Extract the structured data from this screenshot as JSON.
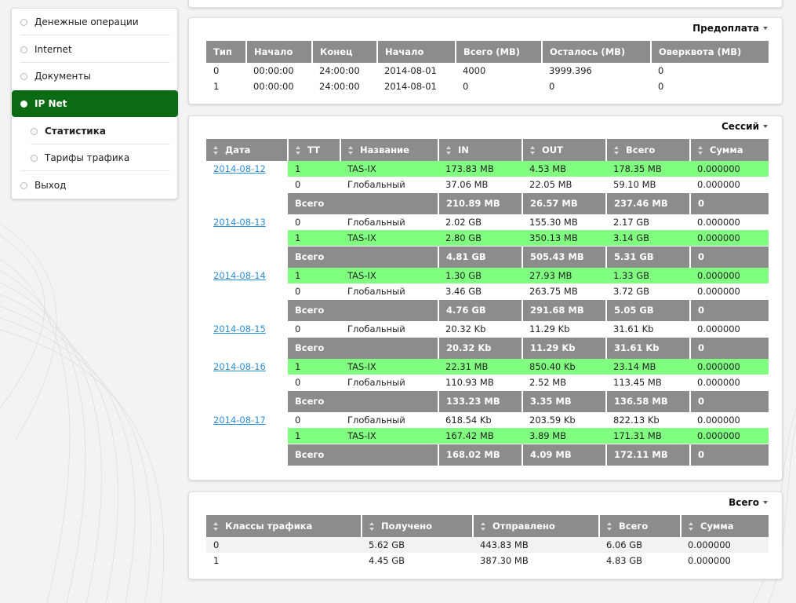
{
  "sidebar": {
    "items": [
      {
        "label": "Денежные операции"
      },
      {
        "label": "Internet"
      },
      {
        "label": "Документы"
      },
      {
        "label": "IP Net"
      },
      {
        "label": "Статистика"
      },
      {
        "label": "Тарифы трафика"
      },
      {
        "label": "Выход"
      }
    ]
  },
  "prepay": {
    "title": "Предоплата",
    "headers": [
      "Тип",
      "Начало",
      "Конец",
      "Начало",
      "Всего (MB)",
      "Осталось (MB)",
      "Оверквота (MB)"
    ],
    "rows": [
      [
        "0",
        "00:00:00",
        "24:00:00",
        "2014-08-01",
        "4000",
        "3999.396",
        "0"
      ],
      [
        "1",
        "00:00:00",
        "24:00:00",
        "2014-08-01",
        "0",
        "0",
        "0"
      ]
    ]
  },
  "sessions": {
    "title": "Сессий",
    "headers": [
      "Дата",
      "TT",
      "Название",
      "IN",
      "OUT",
      "Всего",
      "Сумма"
    ],
    "total_label": "Всего",
    "days": [
      {
        "date": "2014-08-12",
        "rows": [
          {
            "tt": "1",
            "name": "TAS-IX",
            "in": "173.83 MB",
            "out": "4.53 MB",
            "total": "178.35 MB",
            "sum": "0.000000",
            "green": true
          },
          {
            "tt": "0",
            "name": "Глобальный",
            "in": "37.06 MB",
            "out": "22.05 MB",
            "total": "59.10 MB",
            "sum": "0.000000",
            "green": false
          }
        ],
        "totals": {
          "in": "210.89 MB",
          "out": "26.57 MB",
          "total": "237.46 MB",
          "sum": "0"
        }
      },
      {
        "date": "2014-08-13",
        "rows": [
          {
            "tt": "0",
            "name": "Глобальный",
            "in": "2.02 GB",
            "out": "155.30 MB",
            "total": "2.17 GB",
            "sum": "0.000000",
            "green": false
          },
          {
            "tt": "1",
            "name": "TAS-IX",
            "in": "2.80 GB",
            "out": "350.13 MB",
            "total": "3.14 GB",
            "sum": "0.000000",
            "green": true
          }
        ],
        "totals": {
          "in": "4.81 GB",
          "out": "505.43 MB",
          "total": "5.31 GB",
          "sum": "0"
        }
      },
      {
        "date": "2014-08-14",
        "rows": [
          {
            "tt": "1",
            "name": "TAS-IX",
            "in": "1.30 GB",
            "out": "27.93 MB",
            "total": "1.33 GB",
            "sum": "0.000000",
            "green": true
          },
          {
            "tt": "0",
            "name": "Глобальный",
            "in": "3.46 GB",
            "out": "263.75 MB",
            "total": "3.72 GB",
            "sum": "0.000000",
            "green": false
          }
        ],
        "totals": {
          "in": "4.76 GB",
          "out": "291.68 MB",
          "total": "5.05 GB",
          "sum": "0"
        }
      },
      {
        "date": "2014-08-15",
        "rows": [
          {
            "tt": "0",
            "name": "Глобальный",
            "in": "20.32 Kb",
            "out": "11.29 Kb",
            "total": "31.61 Kb",
            "sum": "0.000000",
            "green": false
          }
        ],
        "totals": {
          "in": "20.32 Kb",
          "out": "11.29 Kb",
          "total": "31.61 Kb",
          "sum": "0"
        }
      },
      {
        "date": "2014-08-16",
        "rows": [
          {
            "tt": "1",
            "name": "TAS-IX",
            "in": "22.31 MB",
            "out": "850.40 Kb",
            "total": "23.14 MB",
            "sum": "0.000000",
            "green": true
          },
          {
            "tt": "0",
            "name": "Глобальный",
            "in": "110.93 MB",
            "out": "2.52 MB",
            "total": "113.45 MB",
            "sum": "0.000000",
            "green": false
          }
        ],
        "totals": {
          "in": "133.23 MB",
          "out": "3.35 MB",
          "total": "136.58 MB",
          "sum": "0"
        }
      },
      {
        "date": "2014-08-17",
        "rows": [
          {
            "tt": "0",
            "name": "Глобальный",
            "in": "618.54 Kb",
            "out": "203.59 Kb",
            "total": "822.13 Kb",
            "sum": "0.000000",
            "green": false
          },
          {
            "tt": "1",
            "name": "TAS-IX",
            "in": "167.42 MB",
            "out": "3.89 MB",
            "total": "171.31 MB",
            "sum": "0.000000",
            "green": true
          }
        ],
        "totals": {
          "in": "168.02 MB",
          "out": "4.09 MB",
          "total": "172.11 MB",
          "sum": "0"
        }
      }
    ]
  },
  "summary": {
    "title": "Всего",
    "headers": [
      "Классы трафика",
      "Получено",
      "Отправлено",
      "Всего",
      "Сумма"
    ],
    "rows": [
      [
        "0",
        "5.62 GB",
        "443.83 MB",
        "6.06 GB",
        "0.000000"
      ],
      [
        "1",
        "4.45 GB",
        "387.30 MB",
        "4.83 GB",
        "0.000000"
      ]
    ]
  },
  "colors": {
    "active_menu": "#0b6b14",
    "highlight_row": "#80ff80",
    "header_gray": "#8c8c8c",
    "link": "#2a8fd6"
  }
}
